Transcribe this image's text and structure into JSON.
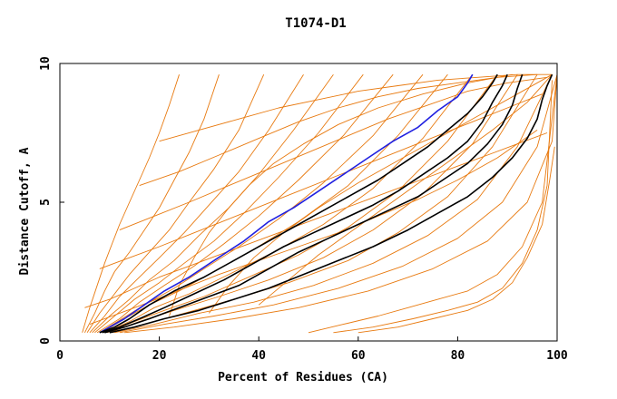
{
  "chart_data": {
    "type": "line",
    "title": "T1074-D1",
    "xlabel": "Percent of Residues (CA)",
    "ylabel": "Distance Cutoff, A",
    "xlim": [
      0,
      100
    ],
    "ylim": [
      0,
      10
    ],
    "xticks": [
      "0",
      "20",
      "40",
      "60",
      "80",
      "100"
    ],
    "yticks": [
      "0",
      "5",
      "10"
    ],
    "grid": false,
    "legend": "none",
    "colors": {
      "background_models": "#e87a10",
      "highlight_blue": "#2020e0",
      "highlight_black": "#000000"
    },
    "series": [
      {
        "role": "background",
        "color": "#e87a10",
        "x": [
          4.5,
          6,
          7.5,
          9,
          10.5,
          12,
          14,
          16,
          18,
          20,
          22,
          24
        ],
        "y": [
          0.3,
          1.2,
          2.0,
          2.8,
          3.5,
          4.2,
          5.0,
          5.8,
          6.6,
          7.5,
          8.5,
          9.6
        ]
      },
      {
        "role": "background",
        "color": "#e87a10",
        "x": [
          5,
          7,
          9,
          11,
          14,
          17,
          20,
          23,
          26,
          29,
          32
        ],
        "y": [
          0.3,
          1.0,
          1.8,
          2.5,
          3.2,
          4.0,
          4.8,
          5.8,
          6.8,
          8.0,
          9.6
        ]
      },
      {
        "role": "background",
        "color": "#e87a10",
        "x": [
          5.5,
          8,
          11,
          14,
          18,
          22,
          26,
          31,
          36,
          41
        ],
        "y": [
          0.3,
          1.0,
          1.7,
          2.4,
          3.2,
          4.0,
          5.0,
          6.2,
          7.6,
          9.6
        ]
      },
      {
        "role": "background",
        "color": "#e87a10",
        "x": [
          6,
          9,
          12,
          16,
          20,
          25,
          30,
          36,
          42,
          49
        ],
        "y": [
          0.3,
          0.9,
          1.6,
          2.3,
          3.0,
          3.9,
          4.9,
          6.1,
          7.6,
          9.6
        ]
      },
      {
        "role": "background",
        "color": "#e87a10",
        "x": [
          6.5,
          10,
          14,
          18,
          23,
          28,
          34,
          40,
          47,
          55
        ],
        "y": [
          0.3,
          0.9,
          1.5,
          2.2,
          2.9,
          3.8,
          4.8,
          6.0,
          7.6,
          9.6
        ]
      },
      {
        "role": "background",
        "color": "#e87a10",
        "x": [
          7,
          11,
          15,
          20,
          25,
          31,
          37,
          44,
          52,
          61
        ],
        "y": [
          0.3,
          0.9,
          1.5,
          2.1,
          2.8,
          3.6,
          4.6,
          5.9,
          7.5,
          9.6
        ]
      },
      {
        "role": "background",
        "color": "#e87a10",
        "x": [
          7.5,
          12,
          16,
          21,
          27,
          33,
          40,
          48,
          57,
          67
        ],
        "y": [
          0.3,
          0.8,
          1.4,
          2.0,
          2.7,
          3.5,
          4.5,
          5.8,
          7.4,
          9.6
        ]
      },
      {
        "role": "background",
        "color": "#e87a10",
        "x": [
          8,
          12.5,
          17,
          23,
          29,
          36,
          44,
          53,
          63,
          73
        ],
        "y": [
          0.3,
          0.8,
          1.3,
          1.9,
          2.6,
          3.4,
          4.4,
          5.7,
          7.4,
          9.6
        ]
      },
      {
        "role": "background",
        "color": "#e87a10",
        "x": [
          8.5,
          13,
          18,
          24,
          31,
          39,
          48,
          58,
          68,
          78
        ],
        "y": [
          0.3,
          0.8,
          1.3,
          1.8,
          2.5,
          3.3,
          4.3,
          5.6,
          7.4,
          9.6
        ]
      },
      {
        "role": "background",
        "color": "#e87a10",
        "x": [
          9,
          14,
          19,
          26,
          34,
          43,
          53,
          63,
          73,
          83
        ],
        "y": [
          0.3,
          0.7,
          1.2,
          1.7,
          2.4,
          3.2,
          4.2,
          5.5,
          7.3,
          9.6
        ]
      },
      {
        "role": "background",
        "color": "#e87a10",
        "x": [
          9.5,
          15,
          21,
          29,
          38,
          48,
          58,
          68,
          78,
          88
        ],
        "y": [
          0.3,
          0.7,
          1.1,
          1.6,
          2.3,
          3.1,
          4.1,
          5.4,
          7.2,
          9.6
        ]
      },
      {
        "role": "background",
        "color": "#e87a10",
        "x": [
          10,
          16,
          23,
          32,
          42,
          53,
          63,
          73,
          83,
          92
        ],
        "y": [
          0.3,
          0.7,
          1.1,
          1.6,
          2.2,
          3.0,
          4.0,
          5.3,
          7.1,
          9.6
        ]
      },
      {
        "role": "background",
        "color": "#e87a10",
        "x": [
          10.5,
          17,
          25,
          35,
          46,
          58,
          68,
          78,
          87,
          96
        ],
        "y": [
          0.3,
          0.6,
          1.0,
          1.5,
          2.1,
          2.9,
          3.9,
          5.2,
          7.0,
          9.6
        ]
      },
      {
        "role": "background",
        "color": "#e87a10",
        "x": [
          11,
          19,
          28,
          39,
          51,
          63,
          74,
          84,
          92,
          99
        ],
        "y": [
          0.3,
          0.6,
          1.0,
          1.4,
          2.0,
          2.8,
          3.8,
          5.1,
          7.0,
          9.6
        ]
      },
      {
        "role": "background",
        "color": "#e87a10",
        "x": [
          12,
          21,
          31,
          43,
          56,
          69,
          80,
          89,
          96,
          100
        ],
        "y": [
          0.3,
          0.6,
          0.9,
          1.3,
          1.9,
          2.7,
          3.7,
          5.0,
          7.0,
          9.6
        ]
      },
      {
        "role": "background",
        "color": "#e87a10",
        "x": [
          13,
          23,
          35,
          48,
          62,
          75,
          86,
          94,
          99,
          100
        ],
        "y": [
          0.3,
          0.5,
          0.8,
          1.2,
          1.8,
          2.6,
          3.6,
          5.0,
          7.2,
          9.6
        ]
      },
      {
        "role": "background",
        "color": "#e87a10",
        "x": [
          22,
          24,
          27,
          30,
          34,
          38,
          43,
          49,
          56,
          64,
          73,
          82,
          91
        ],
        "y": [
          0.9,
          2.0,
          3.0,
          3.9,
          4.8,
          5.6,
          6.4,
          7.1,
          7.8,
          8.4,
          8.9,
          9.3,
          9.6
        ]
      },
      {
        "role": "background",
        "color": "#e87a10",
        "x": [
          30,
          34,
          39,
          45,
          52,
          60,
          68,
          76,
          84,
          92,
          99
        ],
        "y": [
          1.0,
          2.0,
          3.0,
          3.9,
          4.8,
          5.7,
          6.5,
          7.3,
          8.1,
          8.9,
          9.6
        ]
      },
      {
        "role": "background",
        "color": "#e87a10",
        "x": [
          40,
          46,
          52,
          59,
          66,
          73,
          80,
          87,
          94,
          99
        ],
        "y": [
          1.3,
          2.2,
          3.1,
          4.0,
          4.9,
          5.8,
          6.7,
          7.6,
          8.6,
          9.6
        ]
      },
      {
        "role": "background",
        "color": "#e87a10",
        "x": [
          50,
          57,
          64,
          70,
          76,
          82,
          88,
          93,
          97,
          100
        ],
        "y": [
          0.3,
          0.6,
          0.9,
          1.2,
          1.5,
          1.8,
          2.4,
          3.4,
          5.0,
          9.6
        ]
      },
      {
        "role": "background",
        "color": "#e87a10",
        "x": [
          55,
          63,
          71,
          78,
          84,
          89,
          93,
          96,
          98,
          99
        ],
        "y": [
          0.3,
          0.5,
          0.8,
          1.1,
          1.4,
          1.9,
          2.8,
          4.0,
          5.6,
          9.4
        ]
      },
      {
        "role": "background",
        "color": "#e87a10",
        "x": [
          60,
          68,
          75,
          82,
          87,
          91,
          94,
          97,
          98.5,
          99.5
        ],
        "y": [
          0.3,
          0.5,
          0.8,
          1.1,
          1.5,
          2.1,
          3.0,
          4.2,
          5.8,
          7.0
        ]
      },
      {
        "role": "background",
        "color": "#e87a10",
        "x": [
          5,
          10,
          15,
          20,
          26,
          32,
          38,
          44,
          50,
          56,
          62,
          68,
          74,
          80,
          86,
          92,
          98
        ],
        "y": [
          1.2,
          1.5,
          1.9,
          2.3,
          2.7,
          3.1,
          3.5,
          3.9,
          4.3,
          4.7,
          5.1,
          5.5,
          5.9,
          6.3,
          6.7,
          7.1,
          7.5
        ]
      },
      {
        "role": "background",
        "color": "#e87a10",
        "x": [
          8,
          14,
          20,
          27,
          34,
          41,
          48,
          55,
          62,
          69,
          76,
          83,
          90,
          97
        ],
        "y": [
          2.6,
          3.0,
          3.4,
          3.9,
          4.4,
          4.9,
          5.4,
          5.9,
          6.4,
          6.9,
          7.4,
          7.9,
          8.4,
          8.9
        ]
      },
      {
        "role": "background",
        "color": "#e87a10",
        "x": [
          12,
          19,
          26,
          34,
          42,
          50,
          58,
          66,
          74,
          82,
          90,
          98
        ],
        "y": [
          4.0,
          4.5,
          5.0,
          5.6,
          6.2,
          6.8,
          7.4,
          8.0,
          8.5,
          9.0,
          9.3,
          9.5
        ]
      },
      {
        "role": "background",
        "color": "#e87a10",
        "x": [
          16,
          24,
          32,
          40,
          48,
          56,
          64,
          72,
          80,
          88,
          96
        ],
        "y": [
          5.6,
          6.1,
          6.7,
          7.3,
          7.9,
          8.4,
          8.8,
          9.1,
          9.3,
          9.5,
          9.6
        ]
      },
      {
        "role": "background",
        "color": "#e87a10",
        "x": [
          20,
          28,
          36,
          44,
          52,
          60,
          68,
          76,
          84,
          92,
          99
        ],
        "y": [
          7.2,
          7.6,
          8.0,
          8.4,
          8.7,
          9.0,
          9.2,
          9.4,
          9.5,
          9.6,
          9.6
        ]
      },
      {
        "role": "background",
        "color": "#e87a10",
        "x": [
          6,
          12,
          18,
          25,
          32,
          40,
          48,
          56,
          64,
          72,
          80,
          88,
          96
        ],
        "y": [
          0.6,
          1.0,
          1.4,
          1.9,
          2.4,
          2.9,
          3.4,
          3.9,
          4.5,
          5.1,
          5.8,
          6.6,
          7.6
        ]
      },
      {
        "role": "blue",
        "color": "#2020e0",
        "x": [
          8,
          10,
          13,
          17,
          21,
          26,
          31,
          37,
          42,
          47,
          52,
          57,
          62,
          67,
          72,
          76,
          80,
          82,
          83
        ],
        "y": [
          0.3,
          0.5,
          0.8,
          1.3,
          1.8,
          2.3,
          2.9,
          3.6,
          4.3,
          4.8,
          5.4,
          6.0,
          6.6,
          7.2,
          7.7,
          8.3,
          8.8,
          9.3,
          9.6
        ]
      },
      {
        "role": "black",
        "color": "#000000",
        "x": [
          8,
          11,
          14,
          18,
          23,
          29,
          35,
          41,
          47,
          53,
          59,
          64,
          69,
          74,
          78,
          82,
          85,
          87,
          88
        ],
        "y": [
          0.3,
          0.5,
          0.8,
          1.3,
          1.8,
          2.3,
          2.9,
          3.5,
          4.1,
          4.7,
          5.3,
          5.8,
          6.4,
          7.0,
          7.6,
          8.2,
          8.8,
          9.3,
          9.6
        ]
      },
      {
        "role": "black",
        "color": "#000000",
        "x": [
          8.5,
          12,
          16,
          21,
          27,
          33,
          39,
          45,
          51,
          57,
          63,
          68,
          73,
          78,
          82,
          85,
          87,
          89,
          90
        ],
        "y": [
          0.3,
          0.5,
          0.8,
          1.2,
          1.7,
          2.2,
          2.8,
          3.4,
          3.9,
          4.4,
          4.9,
          5.4,
          6.0,
          6.6,
          7.2,
          7.9,
          8.6,
          9.2,
          9.6
        ]
      },
      {
        "role": "black",
        "color": "#000000",
        "x": [
          9,
          13,
          18,
          24,
          30,
          36,
          42,
          48,
          54,
          60,
          66,
          72,
          77,
          82,
          86,
          89,
          91,
          92,
          93
        ],
        "y": [
          0.3,
          0.5,
          0.8,
          1.2,
          1.6,
          2.0,
          2.6,
          3.2,
          3.7,
          4.2,
          4.7,
          5.2,
          5.8,
          6.4,
          7.1,
          7.8,
          8.5,
          9.1,
          9.6
        ]
      },
      {
        "role": "black",
        "color": "#000000",
        "x": [
          10,
          15,
          21,
          28,
          35,
          42,
          49,
          56,
          63,
          70,
          76,
          82,
          87,
          91,
          94,
          96,
          97,
          98,
          99
        ],
        "y": [
          0.3,
          0.5,
          0.8,
          1.1,
          1.5,
          1.9,
          2.4,
          2.9,
          3.4,
          4.0,
          4.6,
          5.2,
          5.9,
          6.6,
          7.3,
          8.0,
          8.7,
          9.2,
          9.6
        ]
      }
    ]
  }
}
